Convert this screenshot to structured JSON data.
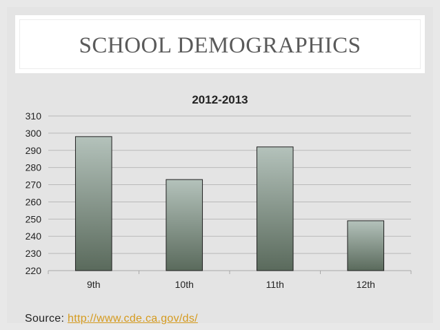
{
  "slide": {
    "title": "SCHOOL DEMOGRAPHICS",
    "source_label": "Source:",
    "source_url": "http://www.cde.ca.gov/ds/"
  },
  "colors": {
    "background": "#e8e8e8",
    "bar_top": "#b4c2bb",
    "bar_bottom": "#5a6a5c",
    "link": "#d59a1d",
    "title": "#5a5a5a"
  },
  "chart_data": {
    "type": "bar",
    "title": "2012-2013",
    "categories": [
      "9th",
      "10th",
      "11th",
      "12th"
    ],
    "values": [
      298,
      273,
      292,
      249
    ],
    "xlabel": "",
    "ylabel": "",
    "ylim": [
      220,
      310
    ],
    "yticks": [
      220,
      230,
      240,
      250,
      260,
      270,
      280,
      290,
      300,
      310
    ],
    "grid": true,
    "legend": "none"
  }
}
